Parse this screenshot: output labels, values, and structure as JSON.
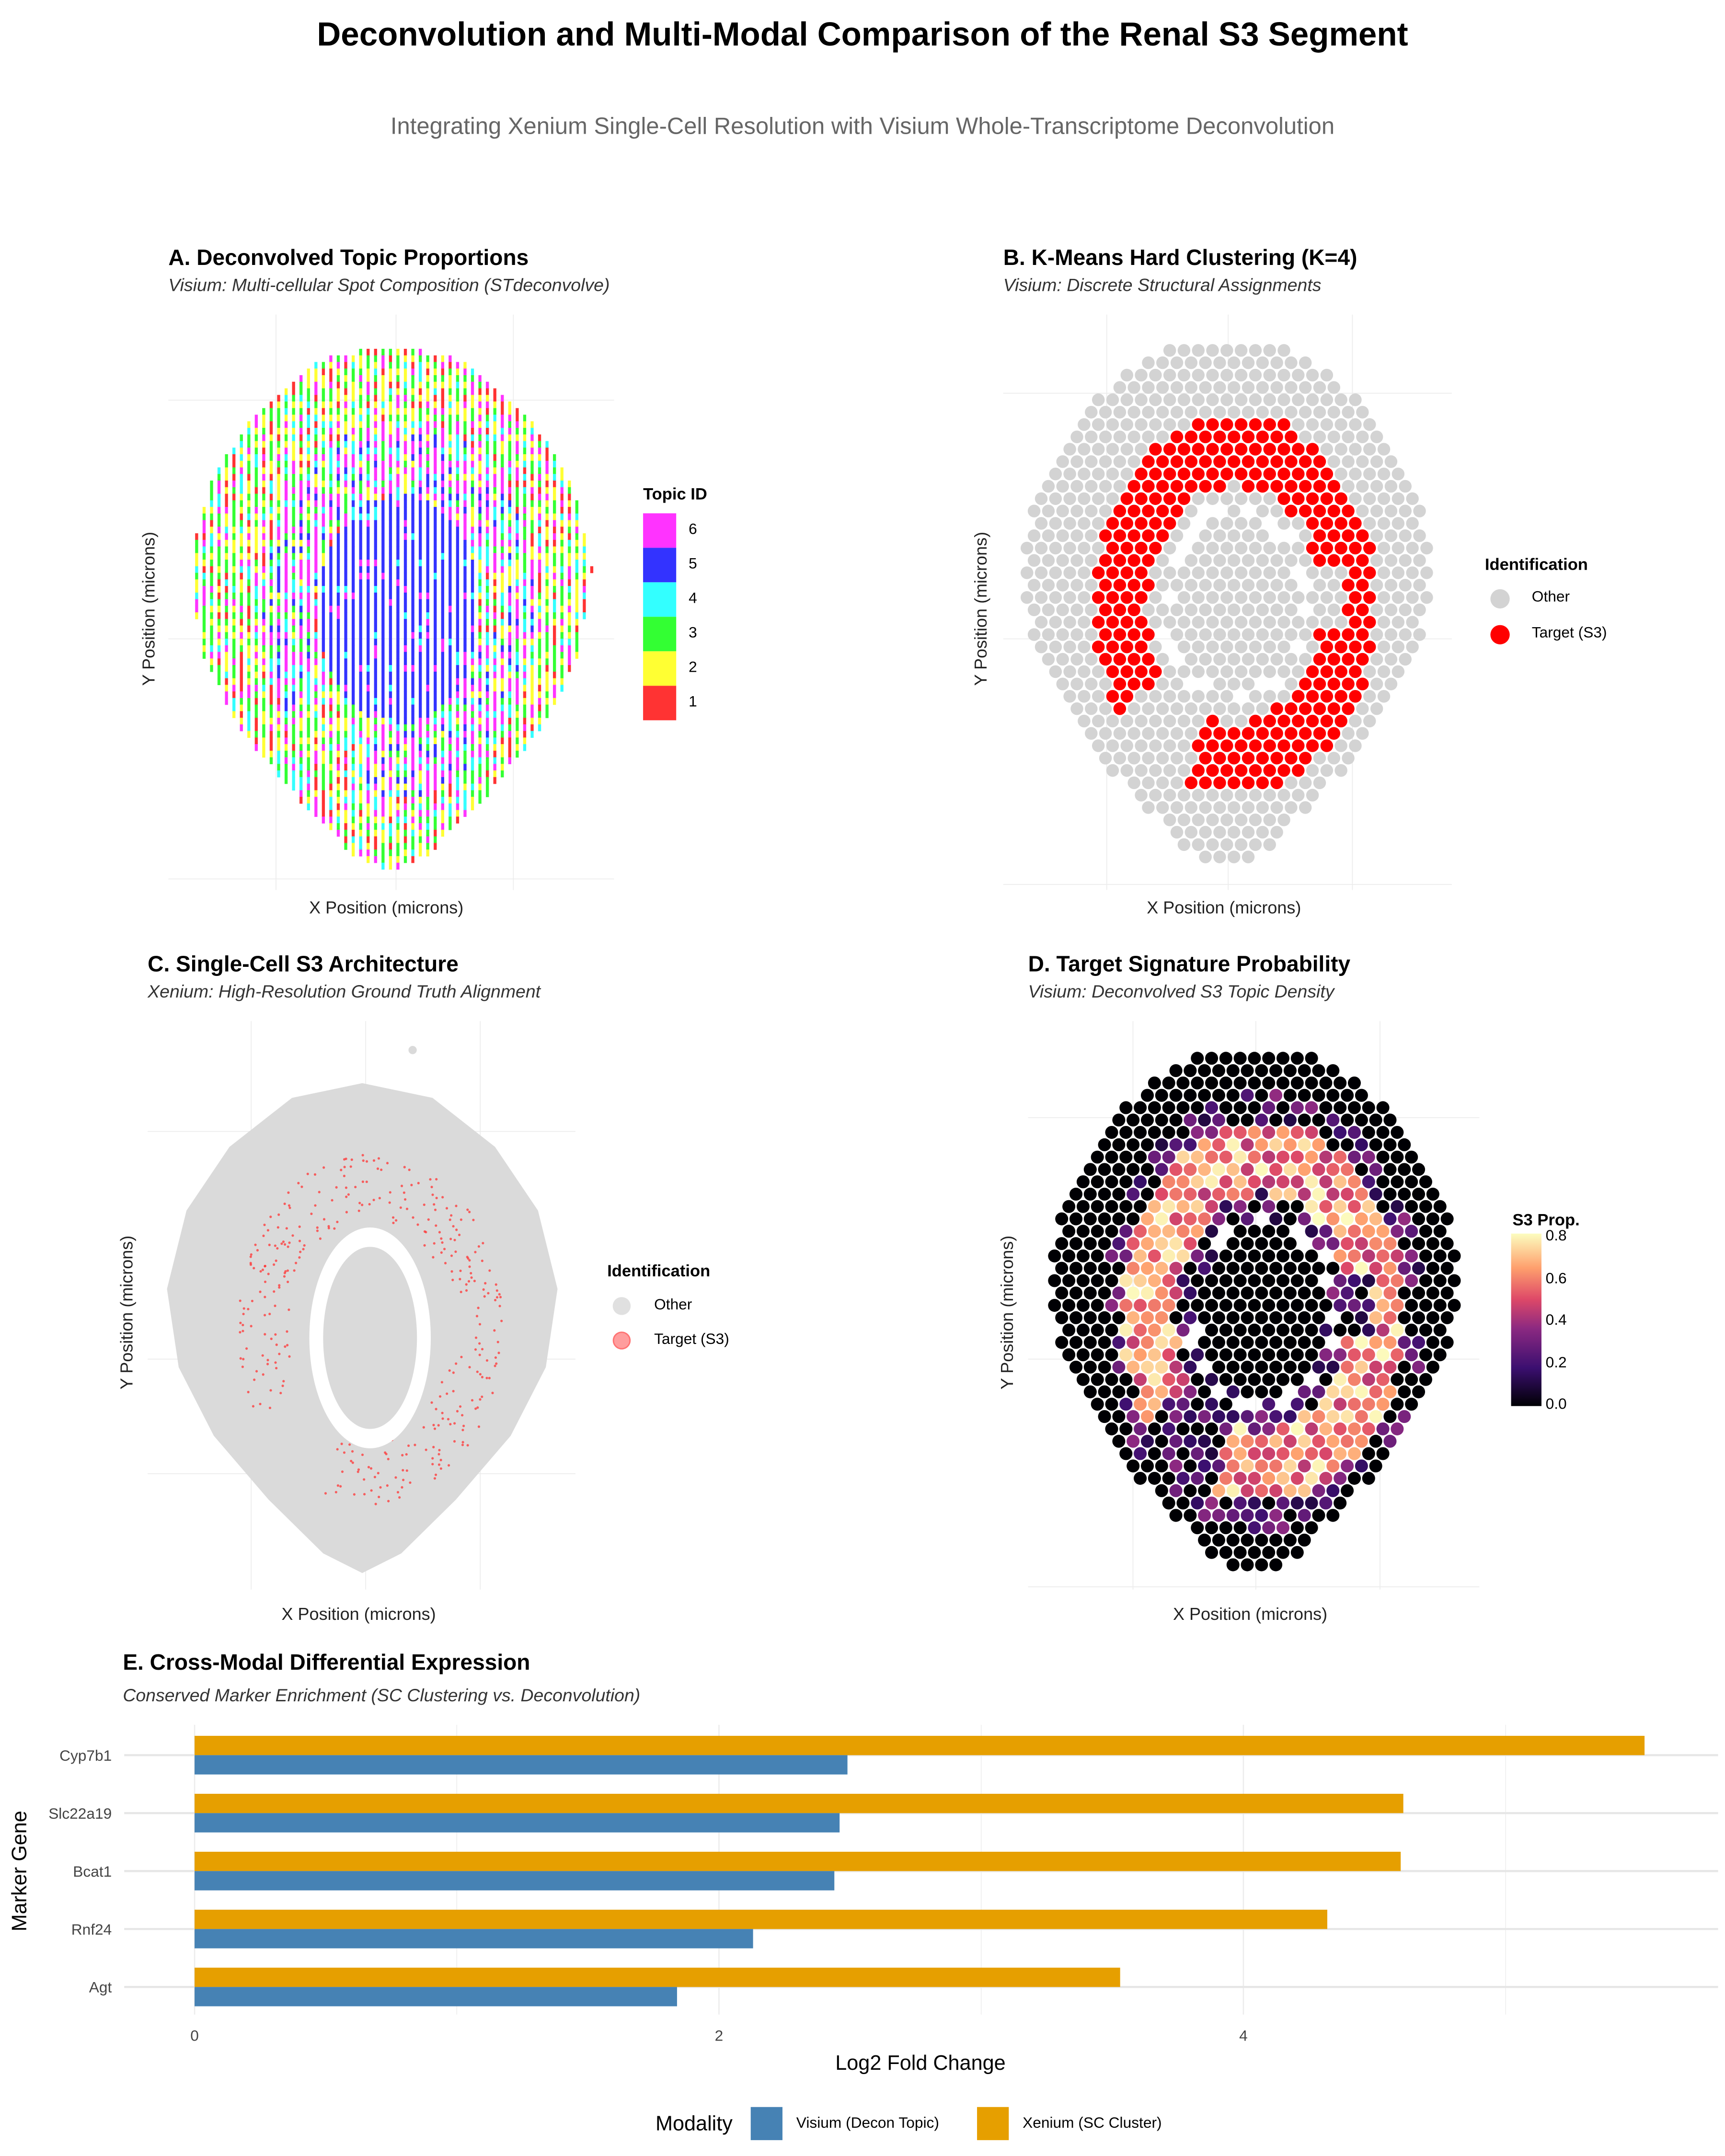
{
  "title": "Deconvolution and Multi-Modal Comparison of the Renal S3 Segment",
  "subtitle": "Integrating Xenium Single-Cell Resolution with Visium Whole-Transcriptome Deconvolution",
  "panels": {
    "a": {
      "title": "A. Deconvolved Topic Proportions",
      "subtitle": "Visium: Multi-cellular Spot Composition (STdeconvolve)",
      "xlabel": "X Position (microns)",
      "ylabel": "Y Position (microns)",
      "legend": {
        "title": "Topic ID",
        "items": [
          {
            "label": "6",
            "color": "#ff33ff"
          },
          {
            "label": "5",
            "color": "#3333ff"
          },
          {
            "label": "4",
            "color": "#33ffff"
          },
          {
            "label": "3",
            "color": "#33ff33"
          },
          {
            "label": "2",
            "color": "#ffff33"
          },
          {
            "label": "1",
            "color": "#ff3333"
          }
        ]
      }
    },
    "b": {
      "title": "B. K-Means Hard Clustering (K=4)",
      "subtitle": "Visium: Discrete Structural Assignments",
      "xlabel": "X Position (microns)",
      "ylabel": "Y Position (microns)",
      "legend": {
        "title": "Identification",
        "items": [
          {
            "label": "Other",
            "color": "#d3d3d3"
          },
          {
            "label": "Target (S3)",
            "color": "#ff0000"
          }
        ]
      }
    },
    "c": {
      "title": "C. Single-Cell S3 Architecture",
      "subtitle": "Xenium: High-Resolution Ground Truth Alignment",
      "xlabel": "X Position (microns)",
      "ylabel": "Y Position (microns)",
      "legend": {
        "title": "Identification",
        "items": [
          {
            "label": "Other",
            "color": "#e0e0e0"
          },
          {
            "label": "Target (S3)",
            "color": "#ff4d4d"
          }
        ]
      }
    },
    "d": {
      "title": "D. Target Signature Probability",
      "subtitle": "Visium: Deconvolved S3 Topic Density",
      "xlabel": "X Position (microns)",
      "ylabel": "Y Position (microns)",
      "legend": {
        "title": "S3 Prop.",
        "ticks": [
          "0.8",
          "0.6",
          "0.4",
          "0.2",
          "0.0"
        ]
      }
    },
    "e": {
      "title": "E. Cross-Modal Differential Expression",
      "subtitle": "Conserved Marker Enrichment (SC Clustering vs. Deconvolution)"
    }
  },
  "chart_data": [
    {
      "panel": "A",
      "type": "scatter",
      "xlabel": "X Position (microns)",
      "ylabel": "Y Position (microns)",
      "legend_title": "Topic ID",
      "categories": [
        "1",
        "2",
        "3",
        "4",
        "5",
        "6"
      ],
      "grid": true,
      "legend": "right"
    },
    {
      "panel": "B",
      "type": "scatter",
      "xlabel": "X Position (microns)",
      "ylabel": "Y Position (microns)",
      "legend_title": "Identification",
      "categories": [
        "Other",
        "Target (S3)"
      ],
      "grid": true,
      "legend": "right"
    },
    {
      "panel": "C",
      "type": "scatter",
      "xlabel": "X Position (microns)",
      "ylabel": "Y Position (microns)",
      "legend_title": "Identification",
      "categories": [
        "Other",
        "Target (S3)"
      ],
      "grid": true,
      "legend": "right"
    },
    {
      "panel": "D",
      "type": "scatter",
      "xlabel": "X Position (microns)",
      "ylabel": "Y Position (microns)",
      "legend_title": "S3 Prop.",
      "color_range": [
        0,
        0.85
      ],
      "colormap": "magma",
      "grid": true,
      "legend": "right"
    },
    {
      "panel": "E",
      "type": "bar",
      "orientation": "horizontal",
      "title": "E. Cross-Modal Differential Expression",
      "subtitle": "Conserved Marker Enrichment (SC Clustering vs. Deconvolution)",
      "xlabel": "Log2 Fold Change",
      "ylabel": "Marker Gene",
      "categories": [
        "Cyp7b1",
        "Slc22a19",
        "Bcat1",
        "Rnf24",
        "Agt"
      ],
      "series": [
        {
          "name": "Visium (Decon Topic)",
          "color": "#4682b4",
          "values": [
            2.49,
            2.46,
            2.44,
            2.13,
            1.84
          ]
        },
        {
          "name": "Xenium (SC Cluster)",
          "color": "#e69f00",
          "values": [
            5.53,
            4.61,
            4.6,
            4.32,
            3.53
          ]
        }
      ],
      "xticks": [
        "0",
        "2",
        "4"
      ],
      "xlim": [
        -0.27,
        5.8
      ],
      "grid": true,
      "legend_title": "Modality",
      "legend": "bottom"
    }
  ]
}
